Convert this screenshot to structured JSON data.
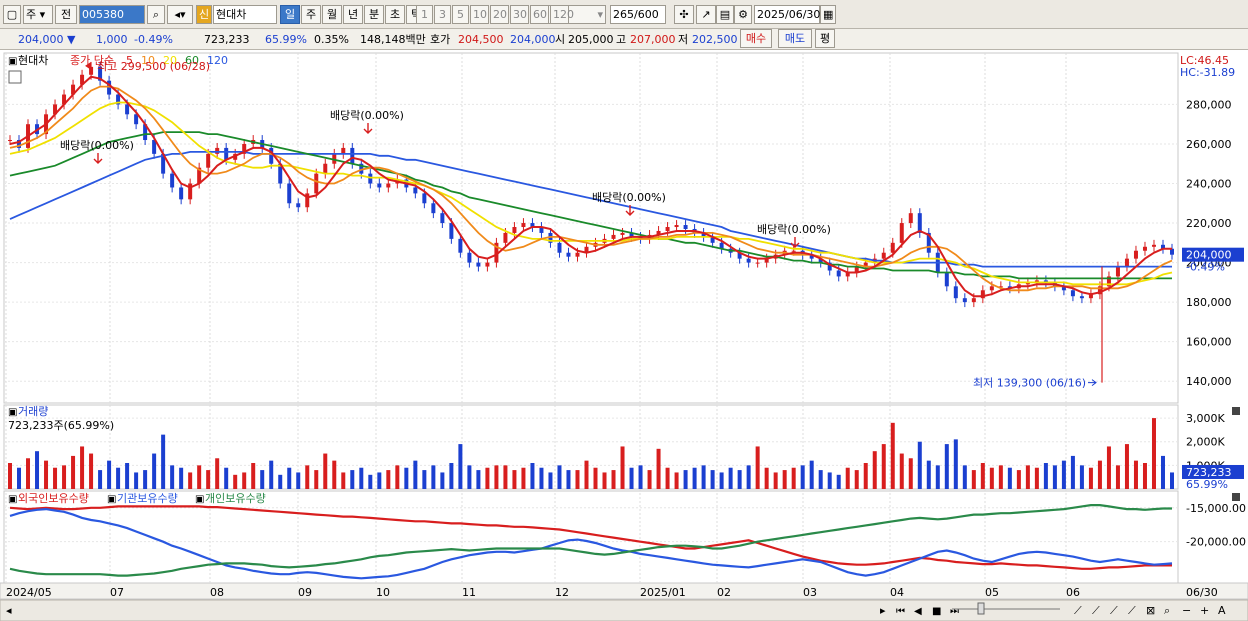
{
  "toolbar": {
    "period_main": "주",
    "prefix_label": "전",
    "code_value": "005380",
    "stock_name": "현대차",
    "credit_badge": "신",
    "periods": [
      "일",
      "주",
      "월",
      "년",
      "분",
      "초",
      "틱"
    ],
    "intervals": [
      "1",
      "3",
      "5",
      "10",
      "20",
      "30",
      "60",
      "120"
    ],
    "count_current": "265",
    "count_total": "/600",
    "date": "2025/06/30"
  },
  "quote": {
    "price": "204,000",
    "change": "1,000",
    "change_pct": "-0.49%",
    "volume": "723,233",
    "volume_ratio": "65.99%",
    "turnover": "0.35%",
    "amount": "148,148백만",
    "bid_label": "호가",
    "bid_ask": "204,500",
    "bid_bid": "204,000",
    "open_label": "시",
    "open": "205,000",
    "high_label": "고",
    "high": "207,000",
    "low_label": "저",
    "low": "202,500",
    "buy_button": "매수",
    "sell_button": "매도",
    "extra_button": "평"
  },
  "legend": {
    "name": "현대차",
    "type": "종가 단순",
    "ma_labels": [
      "5",
      "10",
      "20",
      "60",
      "120"
    ],
    "ma_colors": [
      "#d81e1e",
      "#f08a1a",
      "#f0e000",
      "#1a8a2a",
      "#2a58e0"
    ]
  },
  "annotations": {
    "high": "최고 299,500 (06/28)",
    "low": "최저 139,300 (06/16)",
    "dividends": [
      "배당락(0.00%)",
      "배당락(0.00%)",
      "배당락(0.00%)",
      "배당락(0.00%)"
    ],
    "lc": "LC:46.45",
    "hc": "HC:-31.89",
    "current_price": "204,000",
    "current_pct": "-0.49%"
  },
  "price_axis": [
    "280,000",
    "260,000",
    "240,000",
    "220,000",
    "200,000",
    "180,000",
    "160,000",
    "140,000"
  ],
  "volume_panel": {
    "title": "거래량",
    "value_label": "723,233주(65.99%)",
    "axis": [
      "3,000K",
      "2,000K",
      "1,000K"
    ],
    "current": "723,233",
    "current_pct": "65.99%"
  },
  "holding_panel": {
    "titles": [
      "외국인보유수량",
      "기관보유수량",
      "개인보유수량"
    ],
    "colors": [
      "#d81e1e",
      "#2a58e0",
      "#2a8a4a"
    ],
    "axis": [
      "-15,000.00",
      "-20,000.00"
    ]
  },
  "date_axis": [
    "2024/05",
    "07",
    "08",
    "09",
    "10",
    "11",
    "12",
    "2025/01",
    "02",
    "03",
    "04",
    "05",
    "06",
    "06/30"
  ],
  "chart_data": {
    "type": "candlestick",
    "price_series": [
      262,
      258,
      270,
      265,
      275,
      280,
      285,
      290,
      295,
      299,
      292,
      285,
      280,
      275,
      270,
      262,
      255,
      245,
      238,
      232,
      240,
      248,
      255,
      258,
      252,
      255,
      260,
      262,
      258,
      250,
      240,
      230,
      228,
      235,
      245,
      250,
      255,
      258,
      250,
      245,
      240,
      238,
      240,
      242,
      238,
      235,
      230,
      225,
      220,
      212,
      205,
      200,
      198,
      200,
      210,
      215,
      218,
      220,
      218,
      215,
      210,
      205,
      203,
      205,
      208,
      210,
      212,
      214,
      215,
      213,
      212,
      214,
      216,
      218,
      219,
      217,
      215,
      213,
      210,
      207,
      205,
      202,
      200,
      200,
      202,
      204,
      206,
      206,
      204,
      202,
      200,
      196,
      193,
      195,
      198,
      200,
      202,
      205,
      210,
      220,
      225,
      215,
      205,
      195,
      188,
      182,
      180,
      182,
      186,
      188,
      188,
      187,
      189,
      190,
      191,
      190,
      188,
      186,
      183,
      182,
      184,
      188,
      193,
      198,
      202,
      206,
      208,
      209,
      207,
      204
    ],
    "ma_5": [
      260,
      261,
      264,
      267,
      270,
      275,
      280,
      285,
      290,
      294,
      293,
      290,
      286,
      281,
      276,
      270,
      263,
      255,
      247,
      240,
      238,
      240,
      244,
      249,
      252,
      254,
      256,
      258,
      258,
      256,
      250,
      243,
      236,
      233,
      234,
      238,
      244,
      250,
      253,
      252,
      249,
      245,
      242,
      241,
      240,
      239,
      236,
      232,
      227,
      221,
      214,
      207,
      203,
      202,
      204,
      208,
      212,
      216,
      218,
      218,
      217,
      213,
      209,
      206,
      205,
      206,
      208,
      210,
      212,
      213,
      213,
      213,
      214,
      215,
      216,
      216,
      216,
      215,
      213,
      211,
      208,
      205,
      203,
      202,
      202,
      203,
      204,
      205,
      205,
      204,
      202,
      199,
      197,
      195,
      195,
      196,
      198,
      201,
      204,
      209,
      214,
      216,
      214,
      208,
      200,
      192,
      186,
      183,
      183,
      184,
      186,
      187,
      188,
      188,
      189,
      189,
      189,
      188,
      187,
      185,
      184,
      185,
      187,
      190,
      194,
      198,
      202,
      205,
      207,
      207
    ],
    "ma_10": [
      258,
      259,
      261,
      263,
      266,
      270,
      274,
      278,
      283,
      287,
      289,
      289,
      288,
      285,
      282,
      278,
      273,
      267,
      261,
      255,
      250,
      247,
      245,
      245,
      246,
      248,
      250,
      253,
      255,
      255,
      253,
      250,
      246,
      243,
      241,
      240,
      240,
      242,
      245,
      247,
      248,
      248,
      247,
      245,
      243,
      241,
      239,
      237,
      234,
      230,
      225,
      220,
      215,
      211,
      208,
      206,
      207,
      208,
      210,
      212,
      213,
      213,
      212,
      211,
      210,
      209,
      209,
      209,
      210,
      211,
      212,
      212,
      213,
      213,
      214,
      214,
      215,
      215,
      215,
      214,
      213,
      211,
      209,
      207,
      206,
      205,
      205,
      204,
      204,
      204,
      203,
      202,
      201,
      200,
      199,
      198,
      198,
      199,
      200,
      202,
      205,
      207,
      208,
      208,
      207,
      204,
      200,
      196,
      192,
      189,
      187,
      186,
      186,
      186,
      187,
      187,
      188,
      188,
      188,
      188,
      187,
      187,
      187,
      187,
      188,
      190,
      193,
      196,
      199,
      201
    ],
    "ma_20": [
      255,
      256,
      257,
      259,
      261,
      263,
      266,
      269,
      272,
      275,
      278,
      280,
      281,
      281,
      280,
      279,
      277,
      274,
      271,
      267,
      263,
      259,
      256,
      253,
      251,
      250,
      249,
      248,
      248,
      249,
      249,
      249,
      248,
      247,
      246,
      245,
      245,
      245,
      244,
      244,
      243,
      243,
      243,
      242,
      241,
      240,
      239,
      237,
      235,
      233,
      230,
      227,
      224,
      221,
      218,
      216,
      214,
      213,
      212,
      212,
      211,
      211,
      211,
      211,
      211,
      211,
      211,
      211,
      211,
      212,
      212,
      212,
      212,
      212,
      213,
      213,
      213,
      213,
      213,
      213,
      213,
      212,
      212,
      211,
      210,
      209,
      208,
      207,
      207,
      206,
      205,
      205,
      204,
      203,
      202,
      201,
      200,
      200,
      200,
      200,
      201,
      202,
      202,
      202,
      201,
      200,
      198,
      197,
      195,
      193,
      192,
      191,
      190,
      190,
      190,
      190,
      190,
      190,
      189,
      189,
      189,
      189,
      189,
      189,
      189,
      190,
      191,
      192,
      194,
      195
    ],
    "ma_60": [
      244,
      245,
      246,
      247,
      248,
      249,
      251,
      253,
      255,
      257,
      259,
      261,
      262,
      263,
      264,
      265,
      265,
      266,
      266,
      266,
      266,
      266,
      265,
      265,
      264,
      263,
      262,
      261,
      260,
      259,
      258,
      257,
      256,
      255,
      254,
      253,
      252,
      251,
      250,
      249,
      248,
      247,
      246,
      245,
      244,
      242,
      241,
      239,
      238,
      236,
      235,
      233,
      232,
      231,
      230,
      229,
      228,
      227,
      226,
      225,
      224,
      223,
      222,
      221,
      220,
      219,
      218,
      217,
      216,
      215,
      214,
      213,
      212,
      212,
      211,
      210,
      210,
      209,
      208,
      207,
      206,
      206,
      205,
      204,
      203,
      203,
      202,
      201,
      201,
      200,
      200,
      199,
      199,
      198,
      198,
      197,
      197,
      197,
      196,
      196,
      196,
      196,
      196,
      195,
      195,
      195,
      194,
      194,
      193,
      193,
      193,
      193,
      192,
      192,
      192,
      192,
      192,
      192,
      192,
      192,
      192,
      192,
      192,
      192,
      192,
      192,
      192,
      192,
      192,
      192
    ],
    "ma_120": [
      222,
      224,
      226,
      228,
      230,
      232,
      234,
      236,
      238,
      240,
      242,
      244,
      246,
      248,
      250,
      252,
      253,
      254,
      255,
      255,
      256,
      256,
      256,
      256,
      256,
      256,
      256,
      255,
      255,
      255,
      255,
      255,
      255,
      255,
      255,
      255,
      255,
      255,
      255,
      255,
      255,
      254,
      254,
      253,
      252,
      252,
      251,
      250,
      249,
      248,
      247,
      246,
      245,
      244,
      243,
      242,
      241,
      240,
      239,
      238,
      237,
      236,
      235,
      234,
      233,
      232,
      231,
      230,
      229,
      228,
      227,
      226,
      225,
      224,
      223,
      222,
      221,
      220,
      219,
      218,
      216,
      215,
      214,
      213,
      212,
      211,
      210,
      209,
      208,
      207,
      206,
      205,
      204,
      203,
      202,
      202,
      201,
      201,
      200,
      200,
      200,
      200,
      200,
      200,
      200,
      199,
      199,
      199,
      198,
      198,
      198,
      198,
      198,
      198,
      198,
      198,
      198,
      198,
      198,
      198,
      198,
      198,
      198,
      198,
      198,
      198,
      198,
      198,
      198,
      198
    ],
    "volume_series": [
      1.1,
      0.9,
      1.3,
      1.6,
      1.2,
      0.9,
      1.0,
      1.4,
      1.8,
      1.5,
      0.8,
      1.2,
      0.9,
      1.1,
      0.7,
      0.8,
      1.5,
      2.3,
      1.0,
      0.9,
      0.7,
      1.0,
      0.8,
      1.3,
      0.9,
      0.6,
      0.7,
      1.1,
      0.8,
      1.2,
      0.6,
      0.9,
      0.7,
      1.0,
      0.8,
      1.5,
      1.2,
      0.7,
      0.8,
      0.9,
      0.6,
      0.7,
      0.8,
      1.0,
      0.9,
      1.2,
      0.8,
      1.0,
      0.7,
      1.1,
      1.9,
      1.0,
      0.8,
      0.9,
      1.0,
      1.0,
      0.8,
      0.9,
      1.1,
      0.9,
      0.7,
      1.0,
      0.8,
      0.8,
      1.2,
      0.9,
      0.7,
      0.8,
      1.8,
      0.9,
      1.0,
      0.8,
      1.7,
      0.9,
      0.7,
      0.8,
      0.9,
      1.0,
      0.8,
      0.7,
      0.9,
      0.8,
      1.0,
      1.8,
      0.9,
      0.7,
      0.8,
      0.9,
      1.0,
      1.2,
      0.8,
      0.7,
      0.6,
      0.9,
      0.8,
      1.1,
      1.6,
      1.9,
      2.8,
      1.5,
      1.3,
      2.0,
      1.2,
      1.0,
      1.9,
      2.1,
      1.0,
      0.8,
      1.1,
      0.9,
      1.0,
      0.9,
      0.8,
      1.0,
      0.9,
      1.1,
      1.0,
      1.2,
      1.4,
      1.0,
      0.9,
      1.2,
      1.8,
      1.0,
      1.9,
      1.2,
      1.1,
      3.0,
      1.4,
      0.7
    ],
    "foreign_holding": [
      -15.0,
      -15.1,
      -15.2,
      -15.1,
      -15.0,
      -15.1,
      -15.2,
      -15.2,
      -15.1,
      -15.0,
      -15.0,
      -14.9,
      -14.8,
      -14.8,
      -14.8,
      -14.8,
      -14.8,
      -14.8,
      -14.8,
      -14.8,
      -14.8,
      -14.8,
      -14.9,
      -14.9,
      -15.0,
      -15.1,
      -15.2,
      -15.3,
      -15.4,
      -15.5,
      -15.6,
      -15.7,
      -15.8,
      -15.9,
      -16.0,
      -16.1,
      -16.2,
      -16.3,
      -16.3,
      -16.4,
      -16.5,
      -16.6,
      -16.7,
      -16.8,
      -16.9,
      -17.0,
      -17.0,
      -17.1,
      -17.2,
      -17.3,
      -17.3,
      -17.4,
      -17.5,
      -17.6,
      -17.6,
      -17.7,
      -17.8,
      -17.8,
      -17.9,
      -18.0,
      -18.1,
      -18.2,
      -18.4,
      -18.6,
      -18.8,
      -19.0,
      -19.2,
      -19.4,
      -19.6,
      -19.8,
      -20.0,
      -20.2,
      -20.4,
      -20.6,
      -20.8,
      -21.0,
      -21.0,
      -20.8,
      -20.6,
      -20.4,
      -20.2,
      -20.0,
      -19.8,
      -20.2,
      -20.6,
      -21.0,
      -21.4,
      -21.8,
      -22.2,
      -22.5,
      -22.8,
      -23.0,
      -23.2,
      -23.3,
      -23.4,
      -23.4,
      -23.3,
      -23.2,
      -23.0,
      -22.8,
      -22.6,
      -22.4,
      -22.5,
      -22.7,
      -22.8,
      -23.0,
      -23.1,
      -23.2,
      -23.3,
      -23.3,
      -23.2,
      -23.3,
      -23.4,
      -23.5,
      -23.5,
      -23.6,
      -23.7,
      -23.8,
      -23.9,
      -24.0,
      -24.0,
      -23.9,
      -23.8,
      -23.8,
      -23.7,
      -23.6,
      -23.5,
      -23.5,
      -23.5,
      -23.5
    ],
    "institution_holding": [
      -16.2,
      -15.8,
      -15.5,
      -15.3,
      -15.2,
      -15.4,
      -15.6,
      -16.0,
      -16.5,
      -16.8,
      -17.0,
      -17.3,
      -17.6,
      -18.0,
      -18.5,
      -19.0,
      -19.5,
      -20.0,
      -20.6,
      -21.0,
      -21.5,
      -22.0,
      -22.5,
      -23.0,
      -23.5,
      -23.8,
      -24.0,
      -24.3,
      -24.5,
      -24.7,
      -24.8,
      -24.8,
      -24.6,
      -24.5,
      -24.6,
      -24.8,
      -25.0,
      -25.2,
      -25.3,
      -25.4,
      -25.3,
      -25.2,
      -25.1,
      -24.9,
      -24.6,
      -24.3,
      -24.0,
      -23.5,
      -23.0,
      -22.6,
      -22.3,
      -22.0,
      -21.8,
      -21.6,
      -21.5,
      -21.5,
      -21.6,
      -21.4,
      -21.2,
      -21.0,
      -20.6,
      -20.2,
      -19.8,
      -19.7,
      -19.9,
      -20.2,
      -20.6,
      -21.0,
      -21.3,
      -21.5,
      -21.8,
      -22.0,
      -22.2,
      -22.4,
      -22.6,
      -22.8,
      -23.0,
      -23.2,
      -23.4,
      -23.5,
      -23.6,
      -23.7,
      -23.8,
      -23.6,
      -23.4,
      -23.2,
      -23.0,
      -22.8,
      -22.6,
      -22.8,
      -23.0,
      -23.5,
      -24.0,
      -24.5,
      -24.8,
      -25.0,
      -24.8,
      -24.5,
      -24.0,
      -23.5,
      -23.0,
      -22.5,
      -22.0,
      -21.5,
      -21.3,
      -21.6,
      -22.0,
      -22.5,
      -22.8,
      -23.0,
      -22.6,
      -22.2,
      -21.8,
      -21.6,
      -21.5,
      -21.6,
      -21.8,
      -22.0,
      -22.2,
      -22.5,
      -22.8,
      -23.0,
      -22.8,
      -22.6,
      -22.8,
      -23.0,
      -23.2,
      -23.4,
      -23.3,
      -23.2
    ],
    "individual_holding": [
      -24.0,
      -24.3,
      -24.5,
      -24.7,
      -24.8,
      -24.8,
      -24.8,
      -24.8,
      -24.8,
      -24.8,
      -24.8,
      -24.9,
      -25.0,
      -25.0,
      -24.9,
      -24.8,
      -24.7,
      -24.5,
      -24.3,
      -24.0,
      -23.8,
      -23.6,
      -23.4,
      -23.3,
      -23.2,
      -23.2,
      -23.2,
      -23.3,
      -23.4,
      -23.6,
      -23.7,
      -23.8,
      -23.7,
      -23.6,
      -23.5,
      -23.3,
      -23.2,
      -23.0,
      -22.8,
      -22.6,
      -22.3,
      -22.1,
      -22.0,
      -21.8,
      -21.6,
      -21.5,
      -21.4,
      -21.3,
      -21.2,
      -21.1,
      -21.2,
      -21.3,
      -21.2,
      -21.1,
      -21.0,
      -21.0,
      -21.0,
      -21.0,
      -21.0,
      -21.0,
      -21.0,
      -21.0,
      -21.2,
      -21.4,
      -21.6,
      -21.8,
      -21.9,
      -21.8,
      -21.6,
      -21.4,
      -21.2,
      -21.0,
      -20.8,
      -20.7,
      -20.6,
      -20.6,
      -20.7,
      -20.8,
      -21.0,
      -21.0,
      -20.8,
      -20.6,
      -20.3,
      -20.0,
      -19.8,
      -19.6,
      -19.4,
      -19.2,
      -19.0,
      -18.8,
      -18.6,
      -18.4,
      -18.2,
      -18.0,
      -17.8,
      -17.6,
      -17.4,
      -17.2,
      -17.0,
      -16.8,
      -16.6,
      -16.5,
      -16.6,
      -16.7,
      -16.6,
      -16.4,
      -16.2,
      -16.0,
      -16.0,
      -15.9,
      -15.8,
      -15.8,
      -15.7,
      -15.6,
      -15.5,
      -15.4,
      -15.3,
      -15.2,
      -15.0,
      -14.8,
      -14.6,
      -14.6,
      -14.8,
      -15.0,
      -15.2,
      -15.2,
      -15.3,
      -15.2,
      -15.1,
      -15.1
    ]
  }
}
